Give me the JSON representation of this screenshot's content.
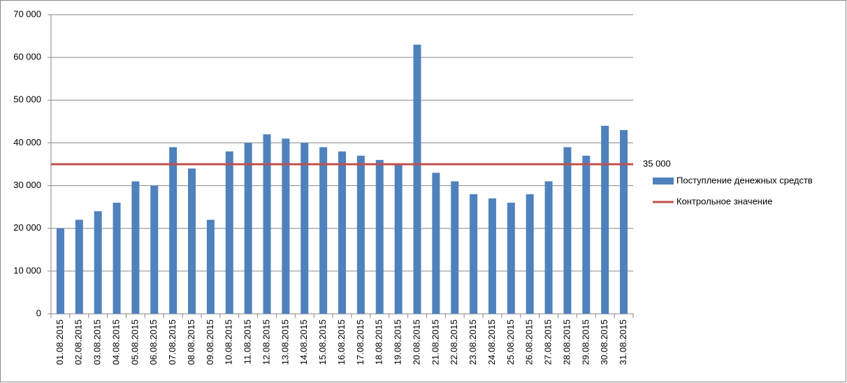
{
  "chart_data": {
    "type": "bar",
    "categories": [
      "01.08.2015",
      "02.08.2015",
      "03.08.2015",
      "04.08.2015",
      "05.08.2015",
      "06.08.2015",
      "07.08.2015",
      "08.08.2015",
      "09.08.2015",
      "10.08.2015",
      "11.08.2015",
      "12.08.2015",
      "13.08.2015",
      "14.08.2015",
      "15.08.2015",
      "16.08.2015",
      "17.08.2015",
      "18.08.2015",
      "19.08.2015",
      "20.08.2015",
      "21.08.2015",
      "22.08.2015",
      "23.08.2015",
      "24.08.2015",
      "25.08.2015",
      "26.08.2015",
      "27.08.2015",
      "28.08.2015",
      "29.08.2015",
      "30.08.2015",
      "31.08.2015"
    ],
    "series": [
      {
        "name": "Поступление денежных средств",
        "color": "#4f81bd",
        "values": [
          20000,
          22000,
          24000,
          26000,
          31000,
          30000,
          39000,
          34000,
          22000,
          38000,
          40000,
          42000,
          41000,
          40000,
          39000,
          38000,
          37000,
          36000,
          35000,
          63000,
          33000,
          31000,
          28000,
          27000,
          26000,
          28000,
          31000,
          39000,
          37000,
          44000,
          43000
        ]
      }
    ],
    "reference_line": {
      "name": "Контрольное значение",
      "value": 35000,
      "label": "35 000",
      "color": "#c0504d"
    },
    "ylim": [
      0,
      70000
    ],
    "yticks": [
      0,
      {
        "value": 10000,
        "label": "10 000"
      },
      {
        "value": 20000,
        "label": "20 000"
      },
      {
        "value": 30000,
        "label": "30 000"
      },
      {
        "value": 40000,
        "label": "40 000"
      },
      {
        "value": 50000,
        "label": "50 000"
      },
      {
        "value": 60000,
        "label": "60 000"
      },
      {
        "value": 70000,
        "label": "70 000"
      }
    ],
    "grid": true
  }
}
